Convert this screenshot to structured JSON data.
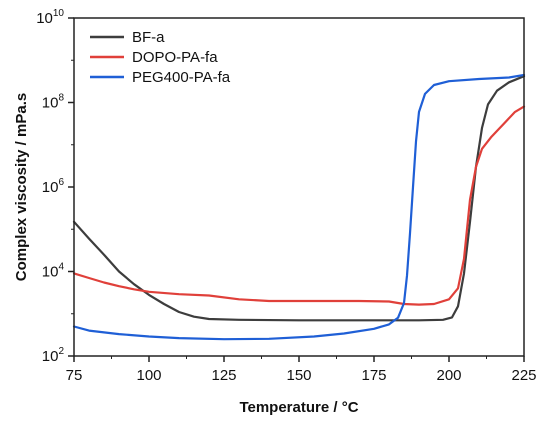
{
  "chart_data": {
    "type": "line",
    "xlabel": "Temperature / °C",
    "ylabel": "Complex viscosity / mPa.s",
    "xlim": [
      75,
      225
    ],
    "ylim": [
      100,
      10000000000
    ],
    "yscale": "log",
    "x_ticks": [
      {
        "value": 75,
        "label": "75"
      },
      {
        "value": 100,
        "label": "100"
      },
      {
        "value": 125,
        "label": "125"
      },
      {
        "value": 150,
        "label": "150"
      },
      {
        "value": 175,
        "label": "175"
      },
      {
        "value": 200,
        "label": "200"
      },
      {
        "value": 225,
        "label": "225"
      }
    ],
    "y_ticks": [
      {
        "value": 100,
        "base": "10",
        "exp": "2"
      },
      {
        "value": 10000,
        "base": "10",
        "exp": "4"
      },
      {
        "value": 1000000,
        "base": "10",
        "exp": "6"
      },
      {
        "value": 100000000,
        "base": "10",
        "exp": "8"
      },
      {
        "value": 10000000000,
        "base": "10",
        "exp": "10"
      }
    ],
    "grid": false,
    "legend_position": "top-left",
    "series": [
      {
        "name": "BF-a",
        "color": "#3d3d3d",
        "points": [
          [
            75,
            150000
          ],
          [
            80,
            60000
          ],
          [
            85,
            25000
          ],
          [
            90,
            10000
          ],
          [
            95,
            5000
          ],
          [
            100,
            2800
          ],
          [
            105,
            1700
          ],
          [
            110,
            1100
          ],
          [
            115,
            850
          ],
          [
            120,
            750
          ],
          [
            130,
            720
          ],
          [
            150,
            700
          ],
          [
            170,
            700
          ],
          [
            190,
            700
          ],
          [
            198,
            720
          ],
          [
            201,
            820
          ],
          [
            203,
            1500
          ],
          [
            205,
            9000
          ],
          [
            207,
            150000
          ],
          [
            209,
            3000000
          ],
          [
            211,
            25000000
          ],
          [
            213,
            90000000
          ],
          [
            216,
            190000000
          ],
          [
            220,
            300000000
          ],
          [
            225,
            420000000
          ]
        ]
      },
      {
        "name": "DOPO-PA-fa",
        "color": "#e0403a",
        "points": [
          [
            75,
            9000
          ],
          [
            80,
            7000
          ],
          [
            85,
            5500
          ],
          [
            90,
            4500
          ],
          [
            95,
            3800
          ],
          [
            100,
            3300
          ],
          [
            110,
            2900
          ],
          [
            120,
            2700
          ],
          [
            130,
            2200
          ],
          [
            140,
            2000
          ],
          [
            150,
            2000
          ],
          [
            170,
            2000
          ],
          [
            180,
            1950
          ],
          [
            185,
            1700
          ],
          [
            190,
            1650
          ],
          [
            195,
            1700
          ],
          [
            200,
            2200
          ],
          [
            203,
            4000
          ],
          [
            205,
            20000
          ],
          [
            207,
            500000
          ],
          [
            209,
            3000000
          ],
          [
            211,
            8000000
          ],
          [
            214,
            15000000
          ],
          [
            218,
            30000000
          ],
          [
            222,
            60000000
          ],
          [
            225,
            80000000
          ]
        ]
      },
      {
        "name": "PEG400-PA-fa",
        "color": "#1f5fd6",
        "points": [
          [
            75,
            500
          ],
          [
            80,
            400
          ],
          [
            90,
            330
          ],
          [
            100,
            290
          ],
          [
            110,
            265
          ],
          [
            125,
            250
          ],
          [
            140,
            255
          ],
          [
            155,
            290
          ],
          [
            165,
            340
          ],
          [
            175,
            440
          ],
          [
            180,
            560
          ],
          [
            183,
            800
          ],
          [
            185,
            1800
          ],
          [
            186,
            8000
          ],
          [
            187,
            80000
          ],
          [
            188,
            1000000
          ],
          [
            189,
            12000000
          ],
          [
            190,
            60000000
          ],
          [
            192,
            160000000
          ],
          [
            195,
            260000000
          ],
          [
            200,
            320000000
          ],
          [
            210,
            360000000
          ],
          [
            220,
            390000000
          ],
          [
            225,
            450000000
          ]
        ]
      }
    ]
  }
}
